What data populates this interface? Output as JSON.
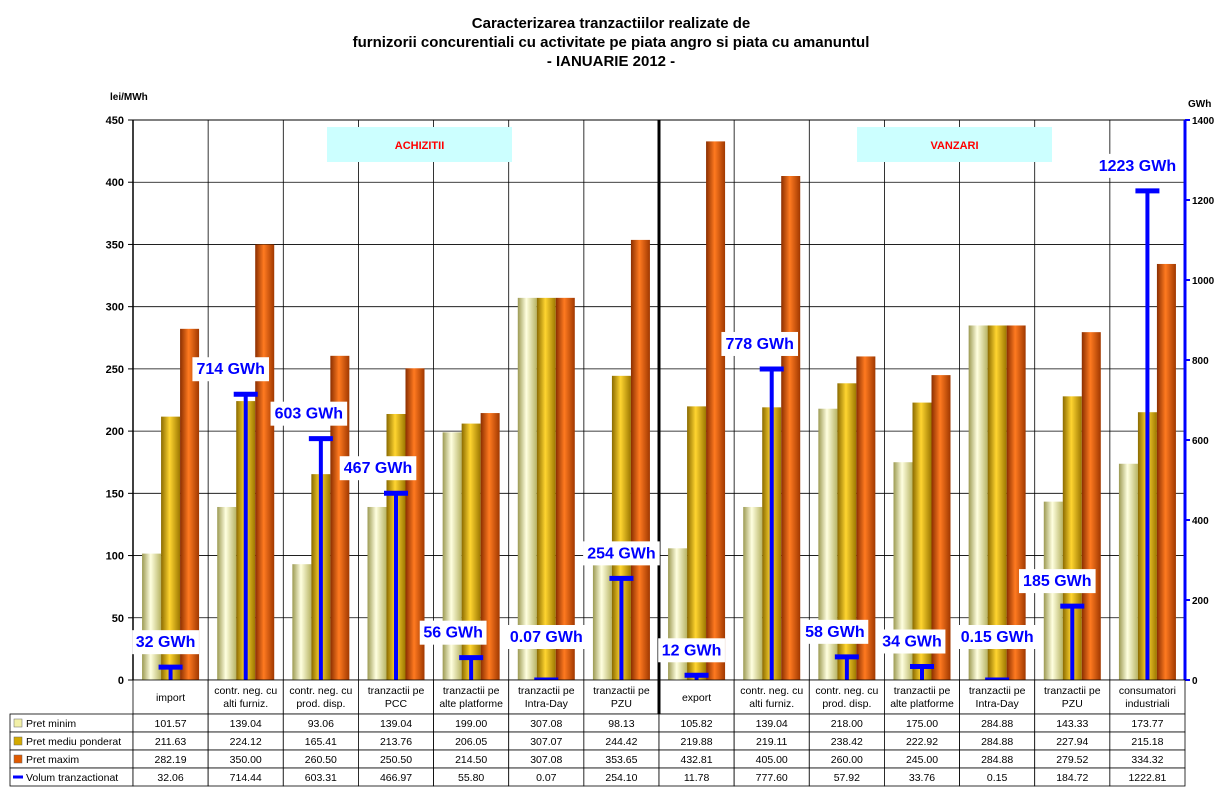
{
  "chart_data": {
    "type": "bar",
    "title": [
      "Caracterizarea tranzactiilor realizate de",
      "furnizorii concurentiali cu activitate pe piata angro si piata cu amanuntul",
      "- IANUARIE 2012 -"
    ],
    "ylabel_left": "lei/MWh",
    "ylabel_right": "GWh",
    "ylim_left": [
      0,
      450
    ],
    "yticks_left": [
      0,
      50,
      100,
      150,
      200,
      250,
      300,
      350,
      400,
      450
    ],
    "ylim_right": [
      0,
      1400
    ],
    "yticks_right": [
      0,
      200,
      400,
      600,
      800,
      1000,
      1200,
      1400
    ],
    "section_labels": [
      "ACHIZITII",
      "VANZARI"
    ],
    "categories": [
      [
        "import"
      ],
      [
        "contr. neg. cu",
        "alti furniz."
      ],
      [
        "contr. neg. cu",
        "prod. disp."
      ],
      [
        "tranzactii pe",
        "PCC"
      ],
      [
        "tranzactii pe",
        "alte platforme"
      ],
      [
        "tranzactii pe",
        "Intra-Day"
      ],
      [
        "tranzactii pe",
        "PZU"
      ],
      [
        "export"
      ],
      [
        "contr. neg. cu",
        "alti furniz."
      ],
      [
        "contr. neg. cu",
        "prod. disp."
      ],
      [
        "tranzactii pe",
        "alte platforme"
      ],
      [
        "tranzactii pe",
        "Intra-Day"
      ],
      [
        "tranzactii pe",
        "PZU"
      ],
      [
        "consumatori",
        "industriali"
      ]
    ],
    "series": [
      {
        "name": "Pret minim",
        "color": "#F2F0A8",
        "values": [
          101.57,
          139.04,
          93.06,
          139.04,
          199.0,
          307.08,
          98.13,
          105.82,
          139.04,
          218.0,
          175.0,
          284.88,
          143.33,
          173.77
        ]
      },
      {
        "name": "Pret mediu ponderat",
        "color": "#D4AA00",
        "values": [
          211.63,
          224.12,
          165.41,
          213.76,
          206.05,
          307.07,
          244.42,
          219.88,
          219.11,
          238.42,
          222.92,
          284.88,
          227.94,
          215.18
        ]
      },
      {
        "name": "Pret maxim",
        "color": "#E05A00",
        "values": [
          282.19,
          350.0,
          260.5,
          250.5,
          214.5,
          307.08,
          353.65,
          432.81,
          405.0,
          260.0,
          245.0,
          284.88,
          279.52,
          334.32
        ]
      }
    ],
    "volume_series": {
      "name": "Volum tranzactionat",
      "color": "#0000FF",
      "axis": "right",
      "values": [
        32.06,
        714.44,
        603.31,
        466.97,
        55.8,
        0.07,
        254.1,
        11.78,
        777.6,
        57.92,
        33.76,
        0.15,
        184.72,
        1222.81
      ],
      "data_labels": [
        "32 GWh",
        "714 GWh",
        "603 GWh",
        "467 GWh",
        "56 GWh",
        "0.07 GWh",
        "254 GWh",
        "12 GWh",
        "778 GWh",
        "58 GWh",
        "34 GWh",
        "0.15 GWh",
        "185 GWh",
        "1223 GWh"
      ]
    },
    "table_rows": [
      [
        "101.57",
        "139.04",
        "93.06",
        "139.04",
        "199.00",
        "307.08",
        "98.13",
        "105.82",
        "139.04",
        "218.00",
        "175.00",
        "284.88",
        "143.33",
        "173.77"
      ],
      [
        "211.63",
        "224.12",
        "165.41",
        "213.76",
        "206.05",
        "307.07",
        "244.42",
        "219.88",
        "219.11",
        "238.42",
        "222.92",
        "284.88",
        "227.94",
        "215.18"
      ],
      [
        "282.19",
        "350.00",
        "260.50",
        "250.50",
        "214.50",
        "307.08",
        "353.65",
        "432.81",
        "405.00",
        "260.00",
        "245.00",
        "284.88",
        "279.52",
        "334.32"
      ],
      [
        "32.06",
        "714.44",
        "603.31",
        "466.97",
        "55.80",
        "0.07",
        "254.10",
        "11.78",
        "777.60",
        "57.92",
        "33.76",
        "0.15",
        "184.72",
        "1222.81"
      ]
    ],
    "grid": true,
    "legend": "data table rows"
  }
}
